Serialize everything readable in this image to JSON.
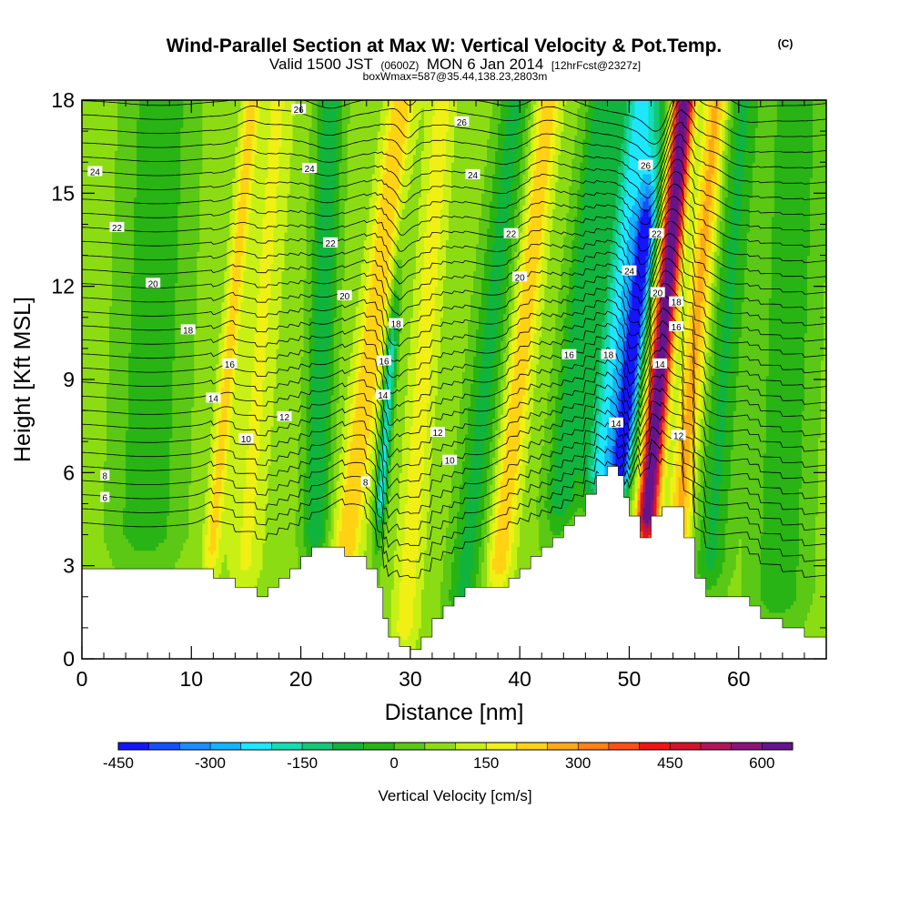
{
  "header": {
    "title": "Wind-Parallel Section at Max W: Vertical Velocity & Pot.Temp.",
    "copyright": "(C)",
    "valid_prefix": "Valid 1500 JST",
    "valid_utc": "(0600Z)",
    "valid_date": "MON 6 Jan 2014",
    "forecast": "[12hrFcst@2327z]",
    "box_info": "boxWmax=587@35.44,138.23,2803m"
  },
  "chart_data": {
    "type": "heatmap",
    "xlabel": "Distance [nm]",
    "ylabel": "Height [Kft MSL]",
    "xlim": [
      0,
      68
    ],
    "ylim": [
      0,
      18
    ],
    "x_ticks": [
      "0",
      "10",
      "20",
      "30",
      "40",
      "50",
      "60"
    ],
    "y_ticks": [
      "0",
      "3",
      "6",
      "9",
      "12",
      "15",
      "18"
    ],
    "colorbar": {
      "title": "Vertical Velocity [cm/s]",
      "tick_labels": [
        "-450",
        "-300",
        "-150",
        "0",
        "150",
        "300",
        "450",
        "600"
      ],
      "colors": [
        "#1414ff",
        "#1450ff",
        "#1e8cff",
        "#14b4ff",
        "#1ee6ff",
        "#14dcb4",
        "#14c878",
        "#10b43c",
        "#28b414",
        "#5ac814",
        "#8cdc14",
        "#c8f014",
        "#f0f014",
        "#ffd214",
        "#ffaa14",
        "#ff8214",
        "#ff5014",
        "#f01414",
        "#d2142d",
        "#b4145a",
        "#8c1478",
        "#64148c"
      ]
    },
    "terrain": [
      [
        0,
        2.9
      ],
      [
        12,
        2.9
      ],
      [
        12,
        2.6
      ],
      [
        14,
        2.6
      ],
      [
        14,
        2.3
      ],
      [
        16,
        2.3
      ],
      [
        16,
        2.0
      ],
      [
        17,
        2.0
      ],
      [
        17,
        2.3
      ],
      [
        18,
        2.3
      ],
      [
        18,
        2.6
      ],
      [
        19,
        2.6
      ],
      [
        19,
        2.9
      ],
      [
        20,
        2.9
      ],
      [
        20,
        3.3
      ],
      [
        21,
        3.3
      ],
      [
        21,
        3.6
      ],
      [
        24,
        3.6
      ],
      [
        24,
        3.3
      ],
      [
        26,
        3.3
      ],
      [
        26,
        2.9
      ],
      [
        27,
        2.9
      ],
      [
        27,
        2.3
      ],
      [
        27.5,
        2.3
      ],
      [
        27.5,
        1.3
      ],
      [
        28,
        1.3
      ],
      [
        28,
        0.7
      ],
      [
        29,
        0.7
      ],
      [
        29,
        0.4
      ],
      [
        30,
        0.4
      ],
      [
        30,
        0.3
      ],
      [
        31,
        0.3
      ],
      [
        31,
        0.7
      ],
      [
        32,
        0.7
      ],
      [
        32,
        1.3
      ],
      [
        33,
        1.3
      ],
      [
        33,
        1.7
      ],
      [
        34,
        1.7
      ],
      [
        34,
        2.0
      ],
      [
        35,
        2.0
      ],
      [
        35,
        2.3
      ],
      [
        39,
        2.3
      ],
      [
        39,
        2.6
      ],
      [
        40,
        2.6
      ],
      [
        40,
        2.9
      ],
      [
        41,
        2.9
      ],
      [
        41,
        3.3
      ],
      [
        42,
        3.3
      ],
      [
        42,
        3.6
      ],
      [
        43,
        3.6
      ],
      [
        43,
        3.9
      ],
      [
        44,
        3.9
      ],
      [
        44,
        4.3
      ],
      [
        45,
        4.3
      ],
      [
        45,
        4.6
      ],
      [
        46,
        4.6
      ],
      [
        46,
        5.3
      ],
      [
        47,
        5.3
      ],
      [
        47,
        5.9
      ],
      [
        48,
        5.9
      ],
      [
        48,
        6.2
      ],
      [
        49,
        6.2
      ],
      [
        49,
        5.9
      ],
      [
        49.5,
        5.9
      ],
      [
        49.5,
        5.2
      ],
      [
        50,
        5.2
      ],
      [
        50,
        4.6
      ],
      [
        51,
        4.6
      ],
      [
        51,
        3.9
      ],
      [
        52,
        3.9
      ],
      [
        52,
        4.6
      ],
      [
        53,
        4.6
      ],
      [
        53,
        4.9
      ],
      [
        55,
        4.9
      ],
      [
        55,
        3.9
      ],
      [
        56,
        3.9
      ],
      [
        56,
        2.6
      ],
      [
        57,
        2.6
      ],
      [
        57,
        2.0
      ],
      [
        61,
        2.0
      ],
      [
        61,
        1.7
      ],
      [
        62,
        1.7
      ],
      [
        62,
        1.3
      ],
      [
        64,
        1.3
      ],
      [
        64,
        1.0
      ],
      [
        66,
        1.0
      ],
      [
        66,
        0.7
      ],
      [
        68,
        0.7
      ],
      [
        68,
        0
      ],
      [
        0,
        0
      ]
    ],
    "w_structures": [
      {
        "x": 12.5,
        "w": 150,
        "half_width": 0.8,
        "tilt": 0.25,
        "z_top": 18,
        "z_base": 3.5
      },
      {
        "x": 15.5,
        "w": 90,
        "half_width": 1.5,
        "tilt": 0.2,
        "z_top": 18,
        "z_base": 3
      },
      {
        "x": 21.5,
        "w": -170,
        "half_width": 1.2,
        "tilt": 0.1,
        "z_top": 18,
        "z_base": 4
      },
      {
        "x": 25,
        "w": 180,
        "half_width": 1.3,
        "tilt": 0.35,
        "z_top": 18,
        "z_base": 3
      },
      {
        "x": 27.5,
        "w": -280,
        "half_width": 0.5,
        "tilt": 0.2,
        "z_top": 10,
        "z_base": 5
      },
      {
        "x": 30.5,
        "w": 110,
        "half_width": 1.2,
        "tilt": 0.2,
        "z_top": 18,
        "z_base": 1
      },
      {
        "x": 36,
        "w": -140,
        "half_width": 1.5,
        "tilt": 0.3,
        "z_top": 18,
        "z_base": 2
      },
      {
        "x": 39,
        "w": 170,
        "half_width": 1.2,
        "tilt": 0.3,
        "z_top": 18,
        "z_base": 3
      },
      {
        "x": 44,
        "w": -160,
        "half_width": 1.5,
        "tilt": 0.3,
        "z_top": 18,
        "z_base": 5
      },
      {
        "x": 47.5,
        "w": -300,
        "half_width": 1.6,
        "tilt": 0.3,
        "z_top": 18,
        "z_base": 6
      },
      {
        "x": 49.2,
        "w": -470,
        "half_width": 0.9,
        "tilt": 0.3,
        "z_top": 14,
        "z_base": 6
      },
      {
        "x": 52,
        "w": 620,
        "half_width": 0.9,
        "tilt": 0.25,
        "z_top": 18,
        "z_base": 4.6
      },
      {
        "x": 55,
        "w": 200,
        "half_width": 1.1,
        "tilt": 0.25,
        "z_top": 18,
        "z_base": 4
      },
      {
        "x": 58,
        "w": -130,
        "half_width": 1.5,
        "tilt": 0.2,
        "z_top": 18,
        "z_base": 3
      },
      {
        "x": 6,
        "w": -110,
        "half_width": 3.0,
        "tilt": 0.1,
        "z_top": 18,
        "z_base": 4
      },
      {
        "x": 64,
        "w": -110,
        "half_width": 2.5,
        "tilt": 0.1,
        "z_top": 18,
        "z_base": 2
      }
    ],
    "theta_contours": [
      {
        "label": "6",
        "z": 5.2,
        "lx": 2.1
      },
      {
        "label": "8",
        "z": 5.9,
        "lx": 2.1
      },
      {
        "label": "10",
        "z": 6.6
      },
      {
        "label": "12",
        "z": 7.3
      },
      {
        "label": "14",
        "z": 8.2,
        "lx": 12
      },
      {
        "label": "16",
        "z": 9.1
      },
      {
        "label": "18",
        "z": 10.0
      },
      {
        "label": "20",
        "z": 11.4,
        "lx": 6.5
      },
      {
        "label": "22",
        "z": 13.0,
        "lx": 3.2
      },
      {
        "label": "24",
        "z": 15.2,
        "lx": 1.2
      },
      {
        "label": "26",
        "z": 17.2
      }
    ],
    "contour_labels": [
      {
        "text": "24",
        "x": 1.2,
        "y": 15.7
      },
      {
        "text": "22",
        "x": 3.2,
        "y": 13.9
      },
      {
        "text": "20",
        "x": 6.5,
        "y": 12.1
      },
      {
        "text": "18",
        "x": 9.7,
        "y": 10.6
      },
      {
        "text": "16",
        "x": 13.5,
        "y": 9.5
      },
      {
        "text": "14",
        "x": 12,
        "y": 8.4
      },
      {
        "text": "10",
        "x": 15,
        "y": 7.1
      },
      {
        "text": "12",
        "x": 18.5,
        "y": 7.8
      },
      {
        "text": "8",
        "x": 2.1,
        "y": 5.9
      },
      {
        "text": "6",
        "x": 2.1,
        "y": 5.2
      },
      {
        "text": "26",
        "x": 19.8,
        "y": 17.7
      },
      {
        "text": "24",
        "x": 20.8,
        "y": 15.8
      },
      {
        "text": "22",
        "x": 22.7,
        "y": 13.4
      },
      {
        "text": "20",
        "x": 24,
        "y": 11.7
      },
      {
        "text": "18",
        "x": 28.7,
        "y": 10.8
      },
      {
        "text": "16",
        "x": 27.6,
        "y": 9.6
      },
      {
        "text": "14",
        "x": 27.5,
        "y": 8.5
      },
      {
        "text": "8",
        "x": 25.9,
        "y": 5.7
      },
      {
        "text": "12",
        "x": 32.5,
        "y": 7.3
      },
      {
        "text": "10",
        "x": 33.6,
        "y": 6.4
      },
      {
        "text": "26",
        "x": 34.7,
        "y": 17.3
      },
      {
        "text": "24",
        "x": 35.7,
        "y": 15.6
      },
      {
        "text": "22",
        "x": 39.2,
        "y": 13.7
      },
      {
        "text": "20",
        "x": 40,
        "y": 12.3
      },
      {
        "text": "16",
        "x": 44.5,
        "y": 9.8
      },
      {
        "text": "18",
        "x": 48.1,
        "y": 9.8
      },
      {
        "text": "14",
        "x": 48.8,
        "y": 7.6
      },
      {
        "text": "26",
        "x": 51.5,
        "y": 15.9
      },
      {
        "text": "22",
        "x": 52.5,
        "y": 13.7
      },
      {
        "text": "24",
        "x": 50,
        "y": 12.5
      },
      {
        "text": "20",
        "x": 52.6,
        "y": 11.8
      },
      {
        "text": "18",
        "x": 54.3,
        "y": 11.5
      },
      {
        "text": "16",
        "x": 54.3,
        "y": 10.7
      },
      {
        "text": "14",
        "x": 52.8,
        "y": 9.5
      },
      {
        "text": "12",
        "x": 54.5,
        "y": 7.2
      }
    ]
  }
}
